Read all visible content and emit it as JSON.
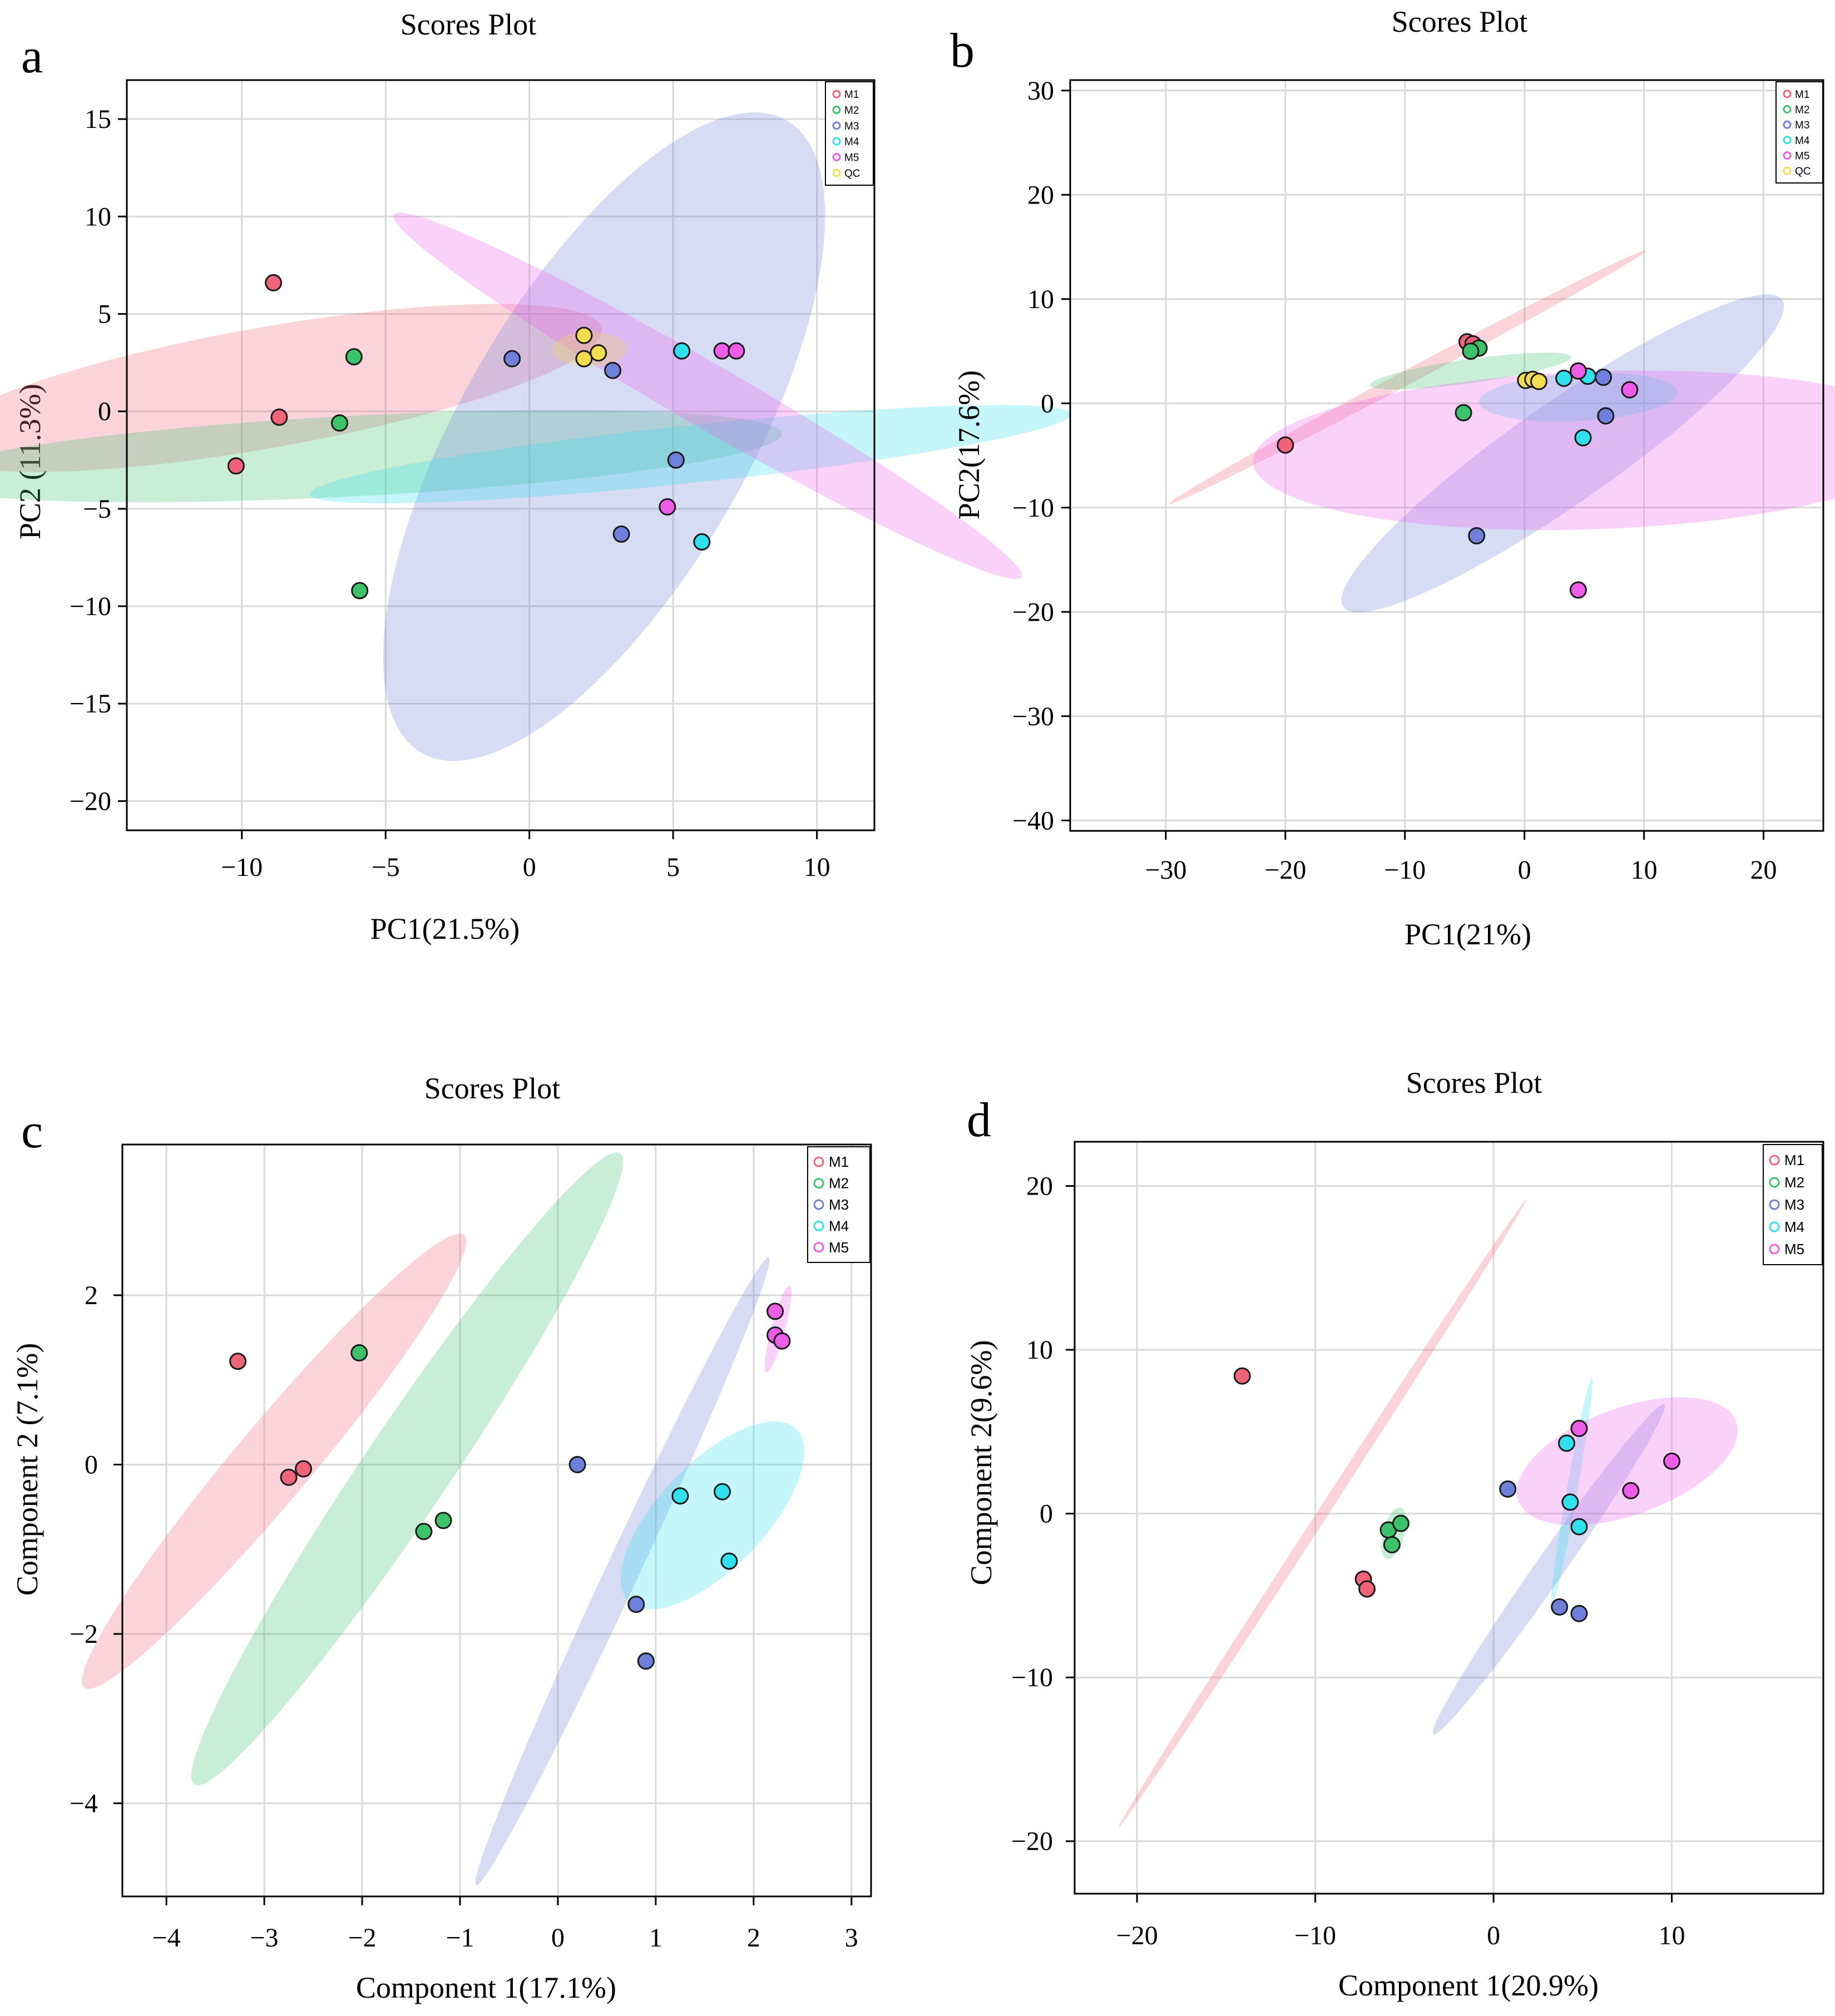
{
  "colors": {
    "M1": "#f0647a",
    "M2": "#3cc36a",
    "M3": "#6f80dc",
    "M4": "#2fe0ee",
    "M5": "#ee5de8",
    "QC": "#f2dc50"
  },
  "chart_data": [
    {
      "type": "scatter",
      "panel": "a",
      "title": "Scores Plot",
      "xlabel": "PC1(21.5%)",
      "ylabel": "PC2 (11.3%)",
      "xlim": [
        -14,
        12
      ],
      "ylim": [
        -21.5,
        17
      ],
      "xticks": [
        -10,
        -5,
        0,
        5,
        10
      ],
      "yticks": [
        15,
        10,
        5,
        0,
        -5,
        -10,
        -15,
        -20
      ],
      "legend": [
        "M1",
        "M2",
        "M3",
        "M4",
        "M5",
        "QC"
      ],
      "legend_position": "top-right",
      "series": [
        {
          "name": "M1",
          "points": [
            [
              -8.9,
              6.6
            ],
            [
              -8.7,
              -0.3
            ],
            [
              -10.2,
              -2.8
            ]
          ],
          "ellipse": {
            "cx": -9.2,
            "cy": 1.2,
            "rx": 2.1,
            "ry": 11.9,
            "angle": 80
          }
        },
        {
          "name": "M2",
          "points": [
            [
              -6.1,
              2.8
            ],
            [
              -6.6,
              -0.6
            ],
            [
              -5.9,
              -9.2
            ]
          ],
          "ellipse": {
            "cx": -6.2,
            "cy": -2.3,
            "rx": 1.4,
            "ry": 15.0,
            "angle": 87
          }
        },
        {
          "name": "M3",
          "points": [
            [
              -0.6,
              2.7
            ],
            [
              2.9,
              2.1
            ],
            [
              3.2,
              -6.3
            ],
            [
              5.1,
              -2.5
            ]
          ],
          "ellipse": {
            "cx": 2.6,
            "cy": -1.3,
            "rx": 5.0,
            "ry": 12.7,
            "angle": 30
          }
        },
        {
          "name": "M4",
          "points": [
            [
              5.3,
              3.1
            ],
            [
              6.0,
              -6.7
            ]
          ],
          "ellipse": {
            "cx": 5.6,
            "cy": -2.2,
            "rx": 1.0,
            "ry": 13.3,
            "angle": 84
          }
        },
        {
          "name": "M5",
          "points": [
            [
              6.7,
              3.1
            ],
            [
              7.2,
              3.1
            ],
            [
              4.8,
              -4.9
            ]
          ],
          "ellipse": {
            "cx": 6.2,
            "cy": 0.8,
            "rx": 1.1,
            "ry": 12.6,
            "angle": -60
          }
        },
        {
          "name": "QC",
          "points": [
            [
              1.9,
              3.9
            ],
            [
              2.4,
              3.0
            ],
            [
              1.9,
              2.7
            ]
          ],
          "ellipse": {
            "cx": 2.1,
            "cy": 3.2,
            "rx": 0.6,
            "ry": 1.3,
            "angle": 90
          }
        }
      ]
    },
    {
      "type": "scatter",
      "panel": "b",
      "title": "Scores Plot",
      "xlabel": "PC1(21%)",
      "ylabel": "PC2(17.6%)",
      "xlim": [
        -38,
        25
      ],
      "ylim": [
        -41,
        31
      ],
      "xticks": [
        -30,
        -20,
        -10,
        0,
        10,
        20
      ],
      "yticks": [
        30,
        20,
        10,
        0,
        -10,
        -20,
        -30,
        -40
      ],
      "legend": [
        "M1",
        "M2",
        "M3",
        "M4",
        "M5",
        "QC"
      ],
      "legend_position": "top-right",
      "series": [
        {
          "name": "M1",
          "points": [
            [
              -4.8,
              5.9
            ],
            [
              -4.3,
              5.7
            ],
            [
              -20.0,
              -4.0
            ]
          ],
          "ellipse": {
            "cx": -9.8,
            "cy": 2.5,
            "rx": 22.6,
            "ry": 0.6,
            "angle": -28
          }
        },
        {
          "name": "M2",
          "points": [
            [
              -3.8,
              5.3
            ],
            [
              -4.5,
              5.0
            ],
            [
              -5.1,
              -0.9
            ]
          ],
          "ellipse": {
            "cx": -4.5,
            "cy": 3.1,
            "rx": 1.0,
            "ry": 8.5,
            "angle": 82
          }
        },
        {
          "name": "M3",
          "points": [
            [
              6.6,
              2.5
            ],
            [
              6.8,
              -1.2
            ],
            [
              -4.0,
              -12.7
            ]
          ],
          "ellipse": {
            "cx": 3.2,
            "cy": -4.8,
            "rx": 4.2,
            "ry": 22.4,
            "angle": 55
          }
        },
        {
          "name": "M4",
          "points": [
            [
              3.3,
              2.4
            ],
            [
              5.3,
              2.6
            ],
            [
              4.9,
              -3.3
            ]
          ],
          "ellipse": {
            "cx": 4.5,
            "cy": 0.6,
            "rx": 2.0,
            "ry": 8.3,
            "angle": 87
          }
        },
        {
          "name": "M5",
          "points": [
            [
              4.5,
              3.1
            ],
            [
              8.8,
              1.3
            ],
            [
              4.5,
              -17.9
            ]
          ],
          "ellipse": {
            "cx": 5.9,
            "cy": -4.5,
            "rx": 6.6,
            "ry": 28.6,
            "angle": 88
          }
        },
        {
          "name": "QC",
          "points": [
            [
              0.1,
              2.2
            ],
            [
              0.7,
              2.3
            ],
            [
              1.2,
              2.1
            ]
          ],
          "ellipse": null
        }
      ]
    },
    {
      "type": "scatter",
      "panel": "c",
      "title": "Scores Plot",
      "xlabel": "Component 1(17.1%)",
      "ylabel": "Component 2 (7.1%)",
      "xlim": [
        -4.45,
        3.2
      ],
      "ylim": [
        -5.1,
        3.78
      ],
      "xticks": [
        -4,
        -3,
        -2,
        -1,
        0,
        1,
        2,
        3
      ],
      "yticks": [
        2,
        0,
        -2,
        -4
      ],
      "legend": [
        "M1",
        "M2",
        "M3",
        "M4",
        "M5"
      ],
      "legend_position": "top-right",
      "series": [
        {
          "name": "M1",
          "points": [
            [
              -3.27,
              1.22
            ],
            [
              -2.6,
              -0.05
            ],
            [
              -2.75,
              -0.15
            ]
          ],
          "ellipse": {
            "cx": -2.9,
            "cy": 0.04,
            "rx": 3.02,
            "ry": 0.39,
            "angle": -50
          }
        },
        {
          "name": "M2",
          "points": [
            [
              -2.03,
              1.32
            ],
            [
              -1.37,
              -0.79
            ],
            [
              -1.17,
              -0.66
            ]
          ],
          "ellipse": {
            "cx": -1.54,
            "cy": -0.05,
            "rx": 3.89,
            "ry": 0.44,
            "angle": -56
          }
        },
        {
          "name": "M3",
          "points": [
            [
              0.2,
              0.0
            ],
            [
              0.8,
              -1.65
            ],
            [
              0.9,
              -2.32
            ]
          ],
          "ellipse": {
            "cx": 0.66,
            "cy": -1.26,
            "rx": 3.54,
            "ry": 0.17,
            "angle": -65
          }
        },
        {
          "name": "M4",
          "points": [
            [
              1.25,
              -0.37
            ],
            [
              1.68,
              -0.32
            ],
            [
              1.75,
              -1.14
            ]
          ],
          "ellipse": {
            "cx": 1.58,
            "cy": -0.6,
            "rx": 1.23,
            "ry": 0.54,
            "angle": -46
          }
        },
        {
          "name": "M5",
          "points": [
            [
              2.22,
              1.81
            ],
            [
              2.22,
              1.53
            ],
            [
              2.29,
              1.46
            ]
          ],
          "ellipse": {
            "cx": 2.25,
            "cy": 1.6,
            "rx": 0.46,
            "ry": 0.07,
            "angle": -75
          }
        }
      ]
    },
    {
      "type": "scatter",
      "panel": "d",
      "title": "Scores Plot",
      "xlabel": "Component 1(20.9%)",
      "ylabel": "Component 2(9.6%)",
      "xlim": [
        -23.5,
        18.5
      ],
      "ylim": [
        -23.2,
        22.7
      ],
      "xticks": [
        -20,
        -10,
        0,
        10
      ],
      "yticks": [
        20,
        10,
        0,
        -10,
        -20
      ],
      "legend": [
        "M1",
        "M2",
        "M3",
        "M4",
        "M5"
      ],
      "legend_position": "top-right",
      "series": [
        {
          "name": "M1",
          "points": [
            [
              -14.1,
              8.4
            ],
            [
              -7.3,
              -4.0
            ],
            [
              -7.1,
              -4.6
            ]
          ],
          "ellipse": {
            "cx": -9.6,
            "cy": 0.0,
            "rx": 21.0,
            "ry": 0.3,
            "angle": -57
          }
        },
        {
          "name": "M2",
          "points": [
            [
              -5.9,
              -1.0
            ],
            [
              -5.2,
              -0.6
            ],
            [
              -5.7,
              -1.9
            ]
          ],
          "ellipse": {
            "cx": -5.6,
            "cy": -1.2,
            "rx": 1.5,
            "ry": 0.6,
            "angle": -75
          }
        },
        {
          "name": "M3",
          "points": [
            [
              0.8,
              1.5
            ],
            [
              3.7,
              -5.7
            ],
            [
              4.8,
              -6.1
            ]
          ],
          "ellipse": {
            "cx": 3.1,
            "cy": -3.4,
            "rx": 11.3,
            "ry": 0.8,
            "angle": -55
          }
        },
        {
          "name": "M4",
          "points": [
            [
              4.1,
              4.3
            ],
            [
              4.3,
              0.7
            ],
            [
              4.8,
              -0.8
            ]
          ],
          "ellipse": {
            "cx": 4.4,
            "cy": 1.4,
            "rx": 6.4,
            "ry": 0.3,
            "angle": -80
          }
        },
        {
          "name": "M5",
          "points": [
            [
              4.8,
              5.2
            ],
            [
              7.7,
              1.4
            ],
            [
              10.0,
              3.2
            ]
          ],
          "ellipse": {
            "cx": 7.5,
            "cy": 3.2,
            "rx": 6.5,
            "ry": 3.0,
            "angle": -20
          }
        }
      ]
    }
  ]
}
